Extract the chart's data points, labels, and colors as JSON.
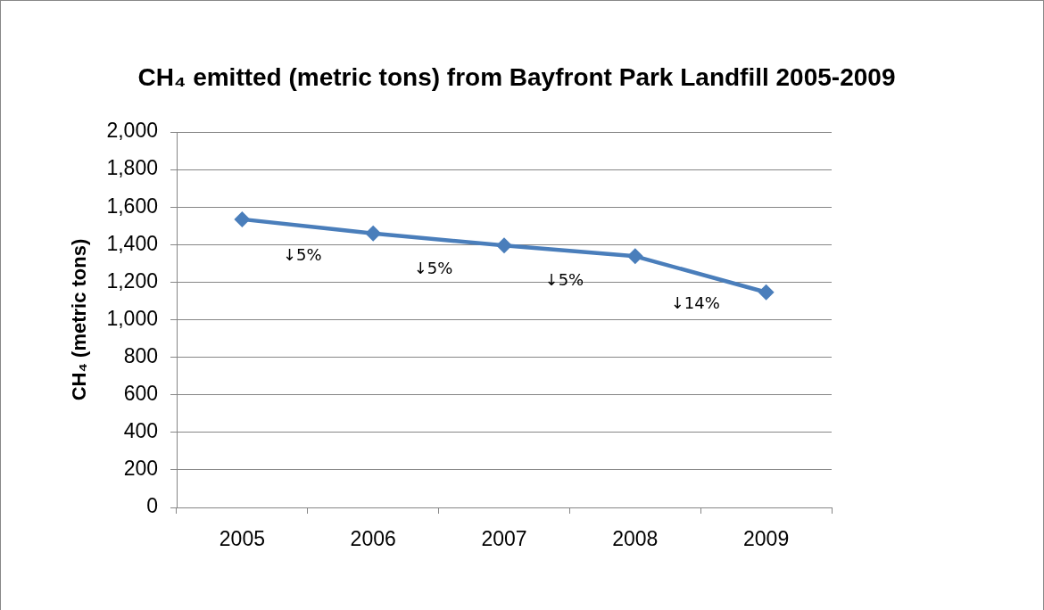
{
  "chart_data": {
    "type": "line",
    "title": "CH₄ emitted (metric tons) from Bayfront Park Landfill 2005-2009",
    "ylabel": "CH₄ (metric tons)",
    "categories": [
      "2005",
      "2006",
      "2007",
      "2008",
      "2009"
    ],
    "series": [
      {
        "color": "#4a7ebb",
        "values": [
          1535,
          1460,
          1395,
          1338,
          1146
        ]
      }
    ],
    "ylim": [
      0,
      2000
    ],
    "yticks": [
      0,
      200,
      400,
      600,
      800,
      {
        "value": 1000,
        "label": "1,000"
      },
      {
        "value": 1200,
        "label": "1,200"
      },
      {
        "value": 1400,
        "label": "1,400"
      },
      {
        "value": 1600,
        "label": "1,600"
      },
      {
        "value": 1800,
        "label": "1,800"
      },
      {
        "value": 2000,
        "label": "2,000"
      }
    ],
    "grid": "y",
    "legend": false,
    "marker": "diamond",
    "line_style": "solid",
    "annotations": [
      "↓5%",
      "↓5%",
      "↓5%",
      "↓14%"
    ]
  }
}
